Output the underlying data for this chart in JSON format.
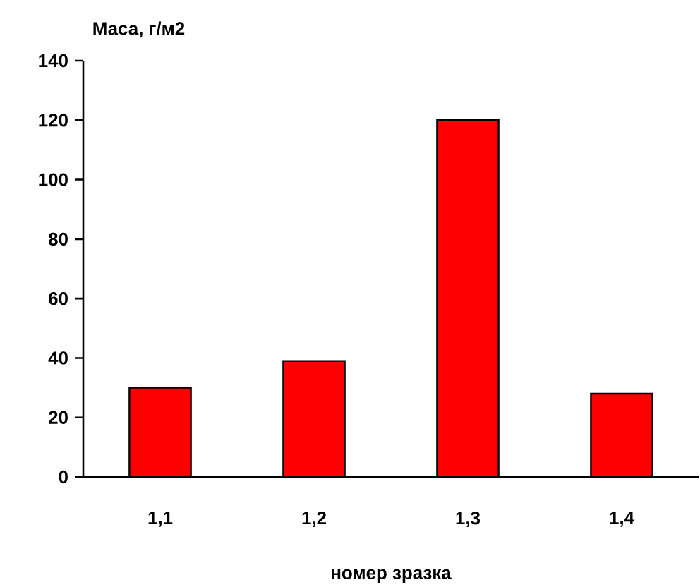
{
  "chart_data": {
    "type": "bar",
    "xlabel": "номер зразка",
    "ylabel": "Маса, г/м2",
    "categories": [
      "1,1",
      "1,2",
      "1,3",
      "1,4"
    ],
    "values": [
      30,
      39,
      120,
      28
    ],
    "color": "#ff0000",
    "ylim": [
      0,
      140
    ],
    "yticks": [
      0,
      20,
      40,
      60,
      80,
      100,
      120,
      140
    ]
  }
}
